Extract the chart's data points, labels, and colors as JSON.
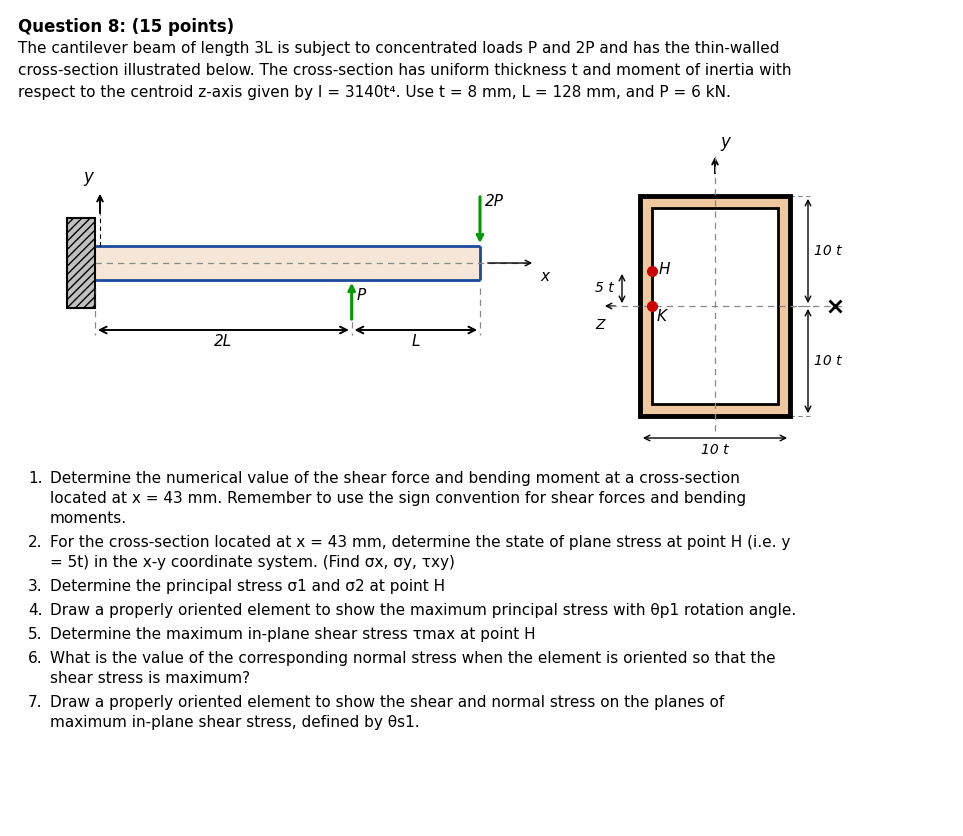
{
  "title_bold": "Question 8: (15 points)",
  "paragraph1": "The cantilever beam of length 3 L is subject to concentrated loads  P and 2P and has the thin-walled",
  "paragraph2": "cross-section illustrated below. The cross-section has uniform thickness  t and moment of inertia with",
  "paragraph3": "respect to the centroid z-axis given by I = 3140t⁴. Use t = 8 mm, L = 128 mm, and P = 6 kN.",
  "bg_color": "#ffffff",
  "text_color": "#000000",
  "beam_fill": "#f5e6d8",
  "beam_stroke": "#1a4a9a",
  "wall_fill": "#c0c0c0",
  "wall_stroke": "#000000",
  "arrow_color": "#009900",
  "cross_outer_fill": "#f0c8a0",
  "cross_stroke": "#000000",
  "dashed_color": "#888888",
  "dim_color": "#000000",
  "red_dot": "#cc0000"
}
